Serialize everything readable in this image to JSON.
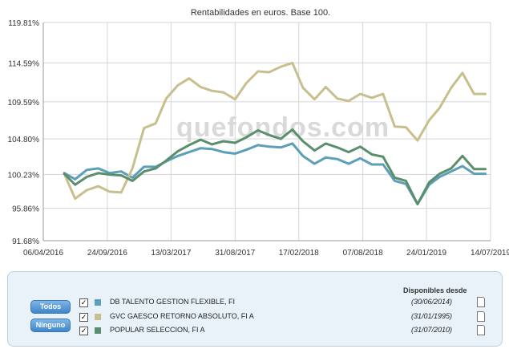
{
  "chart_data": {
    "type": "line",
    "title": "Rentabilidades en euros. Base 100.",
    "watermark": "quefondos.com",
    "xlabel": "",
    "ylabel": "",
    "x_start": "2016-04-06",
    "x_end": "2019-07-14",
    "x_ticks": [
      {
        "date": "2016-04-06",
        "label": "06/04/2016"
      },
      {
        "date": "2016-09-24",
        "label": "24/09/2016"
      },
      {
        "date": "2017-03-13",
        "label": "13/03/2017"
      },
      {
        "date": "2017-08-31",
        "label": "31/08/2017"
      },
      {
        "date": "2018-02-17",
        "label": "17/02/2018"
      },
      {
        "date": "2018-08-07",
        "label": "07/08/2018"
      },
      {
        "date": "2019-01-24",
        "label": "24/01/2019"
      },
      {
        "date": "2019-07-14",
        "label": "14/07/2019"
      }
    ],
    "y_ticks": [
      {
        "value": 91.68,
        "label": "91.68%"
      },
      {
        "value": 95.86,
        "label": "95.86%"
      },
      {
        "value": 100.23,
        "label": "100.23%"
      },
      {
        "value": 104.8,
        "label": "104.80%"
      },
      {
        "value": 109.59,
        "label": "109.59%"
      },
      {
        "value": 114.59,
        "label": "114.59%"
      },
      {
        "value": 119.81,
        "label": "119.81%"
      }
    ],
    "ylim": [
      91.68,
      119.81
    ],
    "dates": [
      "2016-06-01",
      "2016-06-30",
      "2016-07-31",
      "2016-08-31",
      "2016-09-30",
      "2016-10-31",
      "2016-11-30",
      "2016-12-31",
      "2017-01-31",
      "2017-02-28",
      "2017-03-31",
      "2017-04-30",
      "2017-05-31",
      "2017-06-30",
      "2017-07-31",
      "2017-08-31",
      "2017-09-30",
      "2017-10-31",
      "2017-11-30",
      "2017-12-31",
      "2018-01-31",
      "2018-02-28",
      "2018-03-31",
      "2018-04-30",
      "2018-05-31",
      "2018-06-30",
      "2018-07-31",
      "2018-08-31",
      "2018-09-30",
      "2018-10-31",
      "2018-11-30",
      "2018-12-31",
      "2019-01-31",
      "2019-02-28",
      "2019-03-31",
      "2019-04-30",
      "2019-05-31",
      "2019-06-30"
    ],
    "series": [
      {
        "name": "DB TALENTO GESTION FLEXIBLE, FI",
        "color": "#5b9fb8",
        "values": [
          100.4,
          99.6,
          100.8,
          101.0,
          100.4,
          100.6,
          99.8,
          101.2,
          101.2,
          101.9,
          102.6,
          103.1,
          103.6,
          103.5,
          103.1,
          102.9,
          103.4,
          104.0,
          103.8,
          103.7,
          104.2,
          102.6,
          101.6,
          102.4,
          102.2,
          101.6,
          102.3,
          101.5,
          101.5,
          99.4,
          99.0,
          96.4,
          98.9,
          99.9,
          100.6,
          101.3,
          100.3,
          100.3
        ]
      },
      {
        "name": "GVC GAESCO RETORNO ABSOLUTO, FI A",
        "color": "#c8bf8f",
        "values": [
          100.3,
          97.1,
          98.2,
          98.7,
          98.0,
          97.9,
          101.0,
          106.2,
          106.8,
          110.0,
          111.7,
          112.6,
          111.5,
          111.0,
          110.8,
          109.9,
          112.0,
          113.5,
          113.4,
          114.1,
          114.6,
          111.4,
          109.9,
          111.5,
          110.0,
          109.7,
          110.6,
          110.1,
          110.6,
          106.4,
          106.3,
          104.6,
          107.2,
          108.8,
          111.4,
          113.3,
          110.6,
          110.6
        ]
      },
      {
        "name": "POPULAR SELECCION, FI A",
        "color": "#5a8f6e",
        "values": [
          100.3,
          98.9,
          99.9,
          100.4,
          100.2,
          100.1,
          99.4,
          100.6,
          101.0,
          102.0,
          103.2,
          104.0,
          104.7,
          104.1,
          104.5,
          104.3,
          105.0,
          105.9,
          105.3,
          104.8,
          106.0,
          104.5,
          103.3,
          104.2,
          103.7,
          103.1,
          103.8,
          102.8,
          102.5,
          99.8,
          99.4,
          96.4,
          99.2,
          100.3,
          101.0,
          102.6,
          100.9,
          100.9
        ]
      }
    ],
    "legend": {
      "header": "Disponibles desde",
      "buttons": [
        "Todos",
        "Ninguno"
      ],
      "items": [
        {
          "name": "DB TALENTO GESTION FLEXIBLE, FI",
          "since": "(30/06/2014)",
          "checked": true,
          "color": "#5b9fb8"
        },
        {
          "name": "GVC GAESCO RETORNO ABSOLUTO, FI A",
          "since": "(31/01/1995)",
          "checked": true,
          "color": "#c8bf8f"
        },
        {
          "name": "POPULAR SELECCION, FI A",
          "since": "(31/07/2010)",
          "checked": true,
          "color": "#5a8f6e"
        }
      ]
    }
  }
}
